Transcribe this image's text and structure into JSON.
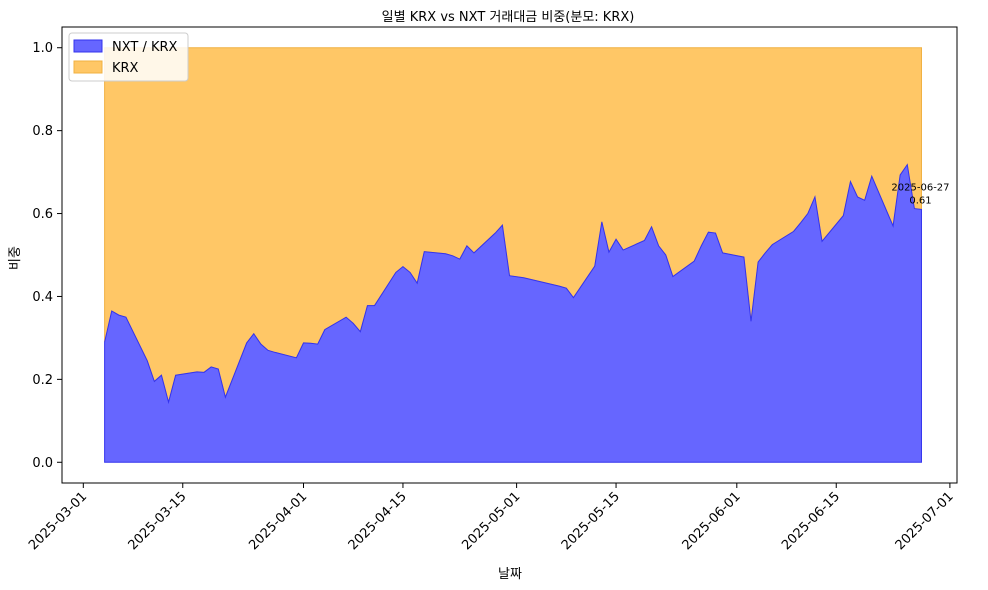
{
  "chart_data": {
    "type": "area",
    "title": "일별 KRX vs NXT 거래대금 비중(분모: KRX)",
    "xlabel": "날짜",
    "ylabel": "비중",
    "x_domain": [
      "2025-02-26",
      "2025-07-02"
    ],
    "ylim": [
      -0.05,
      1.05
    ],
    "yticks": [
      0.0,
      0.2,
      0.4,
      0.6,
      0.8,
      1.0
    ],
    "ytick_labels": [
      "0.0",
      "0.2",
      "0.4",
      "0.6",
      "0.8",
      "1.0"
    ],
    "xticks": [
      "2025-03-01",
      "2025-03-15",
      "2025-04-01",
      "2025-04-15",
      "2025-05-01",
      "2025-05-15",
      "2025-06-01",
      "2025-06-15",
      "2025-07-01"
    ],
    "legend_position": "top-left",
    "colors": {
      "nxt": "#6666ff",
      "nxt_edge": "#3333ee",
      "krx": "#ffc766",
      "krx_edge": "#f0b040"
    },
    "series": [
      {
        "name": "NXT / KRX",
        "points": [
          [
            "2025-03-04",
            0.29
          ],
          [
            "2025-03-05",
            0.365
          ],
          [
            "2025-03-06",
            0.355
          ],
          [
            "2025-03-07",
            0.35
          ],
          [
            "2025-03-10",
            0.245
          ],
          [
            "2025-03-11",
            0.195
          ],
          [
            "2025-03-12",
            0.21
          ],
          [
            "2025-03-13",
            0.145
          ],
          [
            "2025-03-14",
            0.21
          ],
          [
            "2025-03-17",
            0.218
          ],
          [
            "2025-03-18",
            0.217
          ],
          [
            "2025-03-19",
            0.23
          ],
          [
            "2025-03-20",
            0.225
          ],
          [
            "2025-03-21",
            0.157
          ],
          [
            "2025-03-24",
            0.288
          ],
          [
            "2025-03-25",
            0.31
          ],
          [
            "2025-03-26",
            0.285
          ],
          [
            "2025-03-27",
            0.27
          ],
          [
            "2025-03-28",
            0.265
          ],
          [
            "2025-03-31",
            0.252
          ],
          [
            "2025-04-01",
            0.288
          ],
          [
            "2025-04-02",
            0.287
          ],
          [
            "2025-04-03",
            0.285
          ],
          [
            "2025-04-04",
            0.32
          ],
          [
            "2025-04-07",
            0.35
          ],
          [
            "2025-04-08",
            0.335
          ],
          [
            "2025-04-09",
            0.315
          ],
          [
            "2025-04-10",
            0.378
          ],
          [
            "2025-04-11",
            0.378
          ],
          [
            "2025-04-14",
            0.458
          ],
          [
            "2025-04-15",
            0.472
          ],
          [
            "2025-04-16",
            0.458
          ],
          [
            "2025-04-17",
            0.432
          ],
          [
            "2025-04-18",
            0.508
          ],
          [
            "2025-04-21",
            0.503
          ],
          [
            "2025-04-22",
            0.498
          ],
          [
            "2025-04-23",
            0.49
          ],
          [
            "2025-04-24",
            0.522
          ],
          [
            "2025-04-25",
            0.505
          ],
          [
            "2025-04-28",
            0.553
          ],
          [
            "2025-04-29",
            0.572
          ],
          [
            "2025-04-30",
            0.45
          ],
          [
            "2025-05-02",
            0.445
          ],
          [
            "2025-05-07",
            0.425
          ],
          [
            "2025-05-08",
            0.42
          ],
          [
            "2025-05-09",
            0.397
          ],
          [
            "2025-05-12",
            0.473
          ],
          [
            "2025-05-13",
            0.58
          ],
          [
            "2025-05-14",
            0.507
          ],
          [
            "2025-05-15",
            0.538
          ],
          [
            "2025-05-16",
            0.512
          ],
          [
            "2025-05-19",
            0.535
          ],
          [
            "2025-05-20",
            0.568
          ],
          [
            "2025-05-21",
            0.522
          ],
          [
            "2025-05-22",
            0.5
          ],
          [
            "2025-05-23",
            0.448
          ],
          [
            "2025-05-26",
            0.485
          ],
          [
            "2025-05-27",
            0.522
          ],
          [
            "2025-05-28",
            0.555
          ],
          [
            "2025-05-29",
            0.553
          ],
          [
            "2025-05-30",
            0.505
          ],
          [
            "2025-06-02",
            0.495
          ],
          [
            "2025-06-03",
            0.34
          ],
          [
            "2025-06-04",
            0.483
          ],
          [
            "2025-06-05",
            0.505
          ],
          [
            "2025-06-06",
            0.525
          ],
          [
            "2025-06-09",
            0.557
          ],
          [
            "2025-06-10",
            0.578
          ],
          [
            "2025-06-11",
            0.6
          ],
          [
            "2025-06-12",
            0.64
          ],
          [
            "2025-06-13",
            0.533
          ],
          [
            "2025-06-16",
            0.595
          ],
          [
            "2025-06-17",
            0.677
          ],
          [
            "2025-06-18",
            0.64
          ],
          [
            "2025-06-19",
            0.632
          ],
          [
            "2025-06-20",
            0.69
          ],
          [
            "2025-06-23",
            0.57
          ],
          [
            "2025-06-24",
            0.693
          ],
          [
            "2025-06-25",
            0.718
          ],
          [
            "2025-06-26",
            0.612
          ],
          [
            "2025-06-27",
            0.61
          ]
        ]
      },
      {
        "name": "KRX",
        "value": 1.0
      }
    ],
    "annotation": {
      "date": "2025-06-27",
      "value_label": "0.61",
      "date_label": "2025-06-27"
    }
  }
}
